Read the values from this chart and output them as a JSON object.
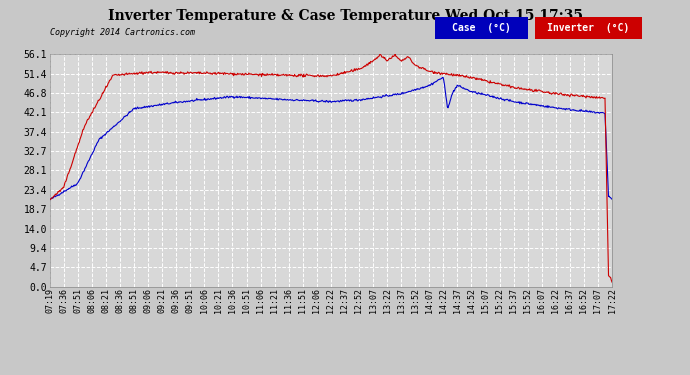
{
  "title": "Inverter Temperature & Case Temperature Wed Oct 15 17:35",
  "copyright": "Copyright 2014 Cartronics.com",
  "bg_color": "#c8c8c8",
  "plot_bg_color": "#d8d8d8",
  "grid_color": "#ffffff",
  "yticks": [
    0.0,
    4.7,
    9.4,
    14.0,
    18.7,
    23.4,
    28.1,
    32.7,
    37.4,
    42.1,
    46.8,
    51.4,
    56.1
  ],
  "ymin": 0.0,
  "ymax": 56.1,
  "case_color": "#0000cc",
  "inverter_color": "#cc0000",
  "legend_case_bg": "#0000bb",
  "legend_inverter_bg": "#cc0000",
  "xtick_labels": [
    "07:19",
    "07:36",
    "07:51",
    "08:06",
    "08:21",
    "08:36",
    "08:51",
    "09:06",
    "09:21",
    "09:36",
    "09:51",
    "10:06",
    "10:21",
    "10:36",
    "10:51",
    "11:06",
    "11:21",
    "11:36",
    "11:51",
    "12:06",
    "12:22",
    "12:37",
    "12:52",
    "13:07",
    "13:22",
    "13:37",
    "13:52",
    "14:07",
    "14:22",
    "14:37",
    "14:52",
    "15:07",
    "15:22",
    "15:37",
    "15:52",
    "16:07",
    "16:22",
    "16:37",
    "16:52",
    "17:07",
    "17:22"
  ]
}
